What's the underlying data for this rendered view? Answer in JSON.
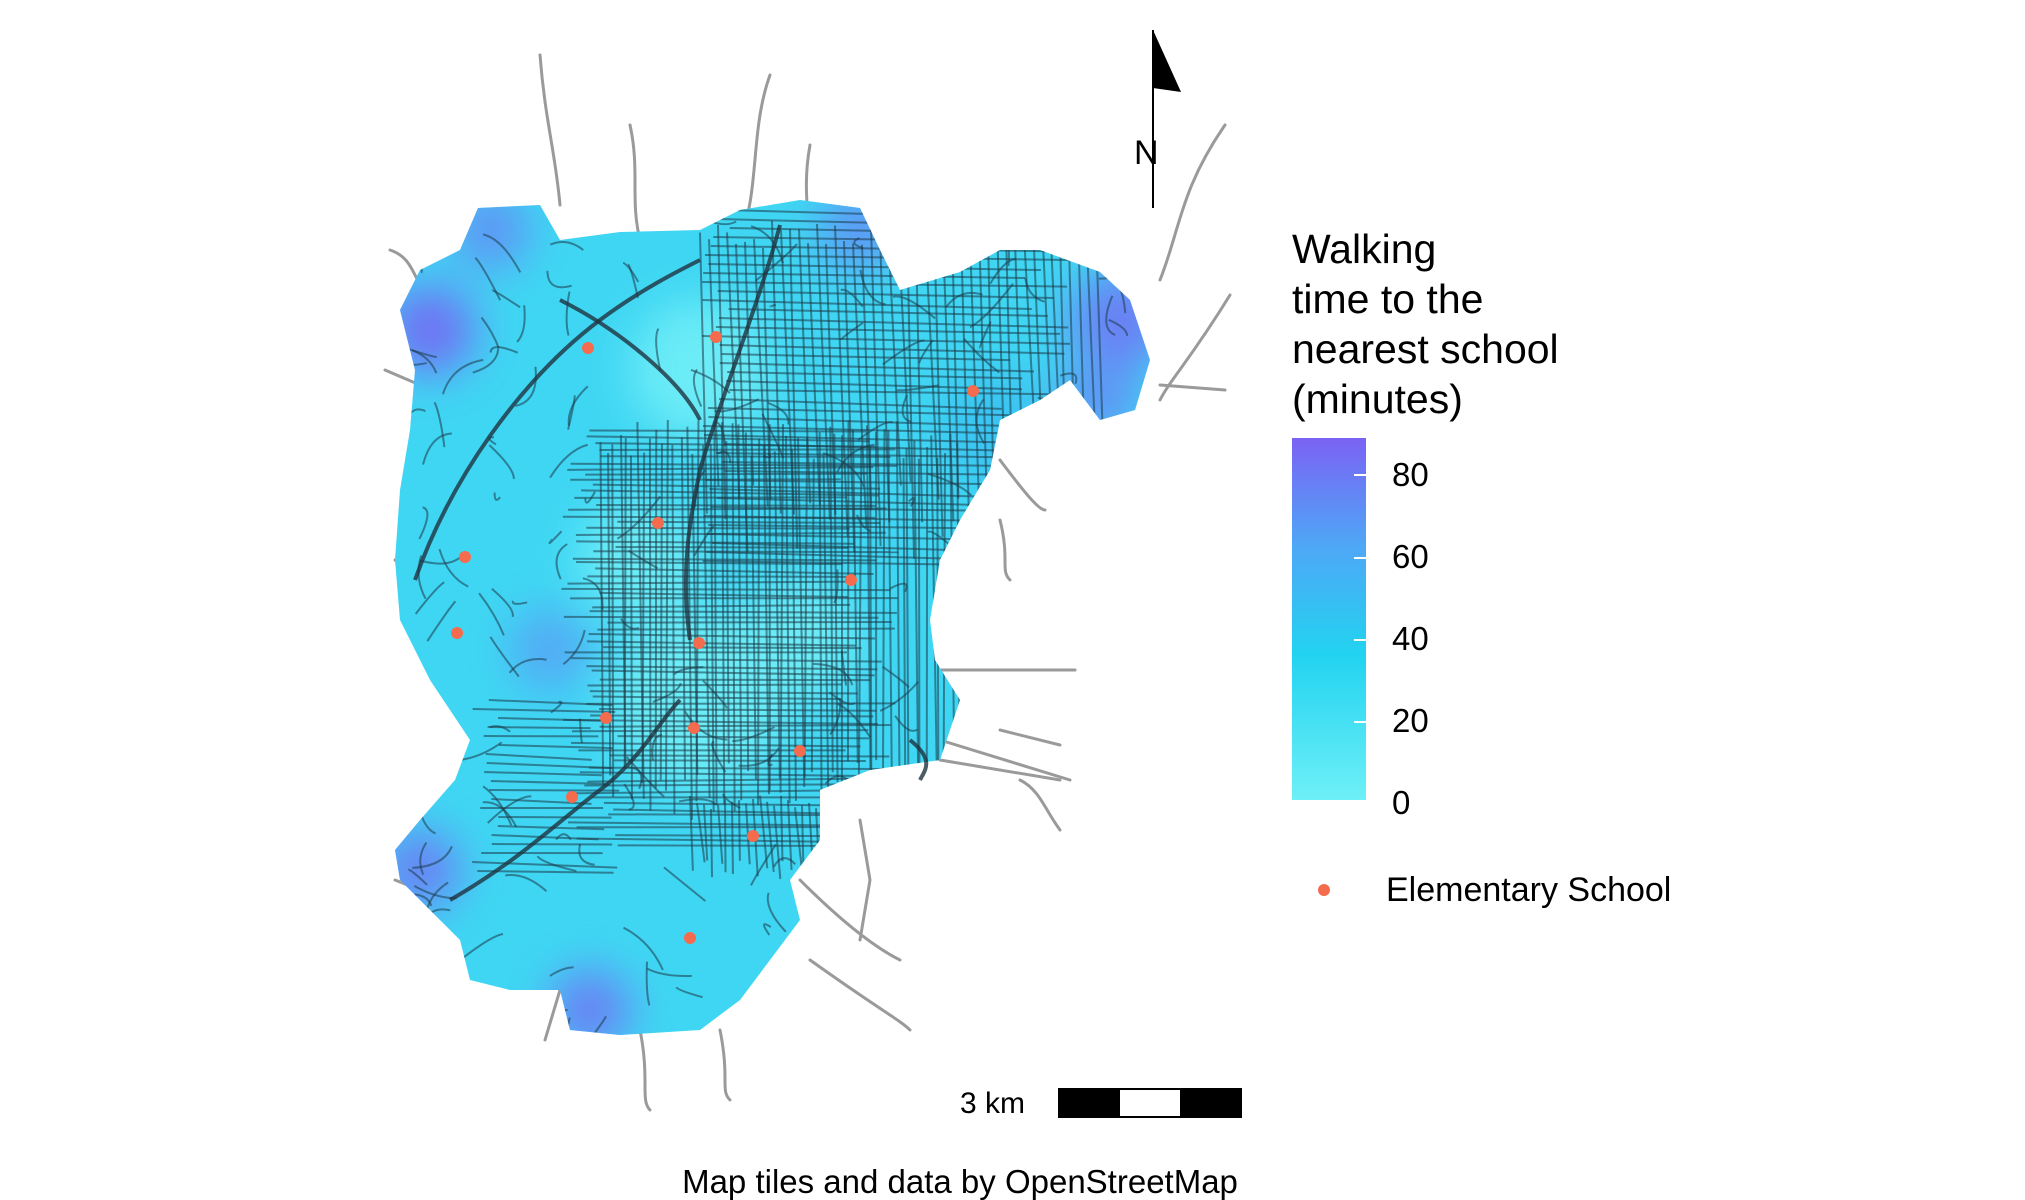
{
  "legend": {
    "title_lines": [
      "Walking",
      "time to the",
      "nearest school",
      "(minutes)"
    ],
    "ticks": [
      "80",
      "60",
      "40",
      "20",
      "0"
    ],
    "colors": [
      "#6ef0f7",
      "#22d3f0",
      "#4ea7f6",
      "#7b62f4"
    ],
    "school_label": "Elementary School",
    "school_color": "#f46b4e"
  },
  "north_arrow": {
    "label": "N"
  },
  "scale_bar": {
    "label": "3 km"
  },
  "caption": "Map tiles and data by OpenStreetMap",
  "map": {
    "region_color": "#3fd6f3",
    "road_color": "#1c3b48",
    "schools_count": 13
  }
}
